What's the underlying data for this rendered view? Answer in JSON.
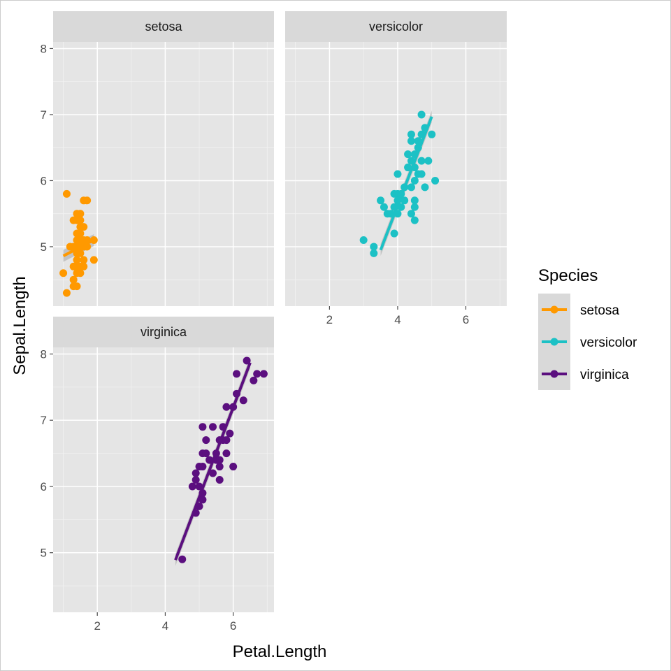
{
  "chart_data": {
    "type": "scatter",
    "facet_by": "Species",
    "xlabel": "Petal.Length",
    "ylabel": "Sepal.Length",
    "x_ticks": [
      2,
      4,
      6
    ],
    "y_ticks": [
      5,
      6,
      7,
      8
    ],
    "xlim": [
      0.7,
      7.2
    ],
    "ylim": [
      4.1,
      8.1
    ],
    "grid": true,
    "legend": {
      "title": "Species",
      "position": "right",
      "entries": [
        "setosa",
        "versicolor",
        "virginica"
      ]
    },
    "panels": [
      {
        "name": "setosa",
        "color": "#FF9900",
        "fit": {
          "x": [
            1.0,
            1.9
          ],
          "y": [
            4.86,
            5.1
          ]
        },
        "points": [
          [
            1.1,
            5.8
          ],
          [
            1.4,
            5.5
          ],
          [
            1.5,
            5.5
          ],
          [
            1.4,
            5.4
          ],
          [
            1.6,
            5.7
          ],
          [
            1.7,
            5.7
          ],
          [
            1.3,
            5.4
          ],
          [
            1.5,
            5.4
          ],
          [
            1.5,
            5.2
          ],
          [
            1.4,
            5.2
          ],
          [
            1.5,
            5.3
          ],
          [
            1.6,
            5.3
          ],
          [
            1.2,
            5.0
          ],
          [
            1.3,
            5.0
          ],
          [
            1.5,
            5.1
          ],
          [
            1.4,
            5.1
          ],
          [
            1.6,
            5.1
          ],
          [
            1.7,
            5.1
          ],
          [
            1.9,
            5.1
          ],
          [
            1.4,
            5.0
          ],
          [
            1.5,
            5.0
          ],
          [
            1.6,
            5.0
          ],
          [
            1.7,
            5.0
          ],
          [
            1.4,
            4.9
          ],
          [
            1.5,
            4.9
          ],
          [
            1.4,
            4.8
          ],
          [
            1.6,
            4.8
          ],
          [
            1.9,
            4.8
          ],
          [
            1.4,
            4.7
          ],
          [
            1.5,
            4.7
          ],
          [
            1.3,
            4.7
          ],
          [
            1.6,
            4.7
          ],
          [
            1.0,
            4.6
          ],
          [
            1.4,
            4.6
          ],
          [
            1.5,
            4.6
          ],
          [
            1.3,
            4.5
          ],
          [
            1.3,
            4.4
          ],
          [
            1.4,
            4.4
          ],
          [
            1.1,
            4.3
          ]
        ]
      },
      {
        "name": "versicolor",
        "color": "#1CC1C5",
        "fit": {
          "x": [
            3.5,
            5.0
          ],
          "y": [
            4.95,
            6.97
          ]
        },
        "points": [
          [
            3.0,
            5.1
          ],
          [
            3.3,
            5.0
          ],
          [
            3.3,
            4.9
          ],
          [
            3.5,
            5.7
          ],
          [
            3.6,
            5.6
          ],
          [
            3.7,
            5.5
          ],
          [
            3.8,
            5.5
          ],
          [
            3.9,
            5.6
          ],
          [
            3.9,
            5.2
          ],
          [
            4.0,
            5.5
          ],
          [
            4.0,
            5.8
          ],
          [
            3.9,
            5.8
          ],
          [
            4.0,
            5.7
          ],
          [
            4.0,
            6.1
          ],
          [
            4.1,
            5.6
          ],
          [
            4.1,
            5.8
          ],
          [
            4.2,
            5.9
          ],
          [
            4.2,
            5.7
          ],
          [
            4.3,
            6.2
          ],
          [
            4.4,
            6.7
          ],
          [
            4.4,
            6.6
          ],
          [
            4.4,
            6.3
          ],
          [
            4.3,
            6.4
          ],
          [
            4.4,
            5.5
          ],
          [
            4.5,
            6.4
          ],
          [
            4.5,
            6.0
          ],
          [
            4.5,
            5.4
          ],
          [
            4.5,
            5.7
          ],
          [
            4.5,
            5.6
          ],
          [
            4.4,
            5.9
          ],
          [
            4.5,
            6.2
          ],
          [
            4.6,
            6.5
          ],
          [
            4.6,
            6.6
          ],
          [
            4.6,
            6.1
          ],
          [
            4.7,
            7.0
          ],
          [
            4.7,
            6.7
          ],
          [
            4.7,
            6.3
          ],
          [
            4.7,
            6.1
          ],
          [
            4.8,
            6.8
          ],
          [
            4.8,
            5.9
          ],
          [
            4.9,
            6.3
          ],
          [
            5.0,
            6.7
          ],
          [
            5.1,
            6.0
          ]
        ]
      },
      {
        "name": "virginica",
        "color": "#5B0F7F",
        "fit": {
          "x": [
            4.3,
            6.5
          ],
          "y": [
            4.89,
            7.87
          ]
        },
        "points": [
          [
            4.5,
            4.9
          ],
          [
            4.8,
            6.0
          ],
          [
            4.9,
            5.6
          ],
          [
            4.9,
            6.1
          ],
          [
            4.9,
            6.2
          ],
          [
            5.0,
            6.3
          ],
          [
            5.0,
            6.0
          ],
          [
            5.0,
            5.7
          ],
          [
            5.1,
            5.8
          ],
          [
            5.1,
            5.9
          ],
          [
            5.1,
            6.3
          ],
          [
            5.1,
            6.5
          ],
          [
            5.1,
            6.9
          ],
          [
            5.2,
            6.5
          ],
          [
            5.2,
            6.7
          ],
          [
            5.3,
            6.4
          ],
          [
            5.4,
            6.2
          ],
          [
            5.4,
            6.9
          ],
          [
            5.5,
            6.4
          ],
          [
            5.5,
            6.5
          ],
          [
            5.6,
            6.3
          ],
          [
            5.6,
            6.4
          ],
          [
            5.6,
            6.1
          ],
          [
            5.6,
            6.7
          ],
          [
            5.7,
            6.7
          ],
          [
            5.7,
            6.9
          ],
          [
            5.8,
            6.5
          ],
          [
            5.8,
            7.2
          ],
          [
            5.8,
            6.7
          ],
          [
            5.9,
            6.8
          ],
          [
            6.0,
            7.2
          ],
          [
            6.1,
            7.7
          ],
          [
            6.1,
            7.4
          ],
          [
            6.0,
            6.3
          ],
          [
            6.3,
            7.3
          ],
          [
            6.4,
            7.9
          ],
          [
            6.6,
            7.6
          ],
          [
            6.7,
            7.7
          ],
          [
            6.9,
            7.7
          ]
        ]
      }
    ]
  }
}
